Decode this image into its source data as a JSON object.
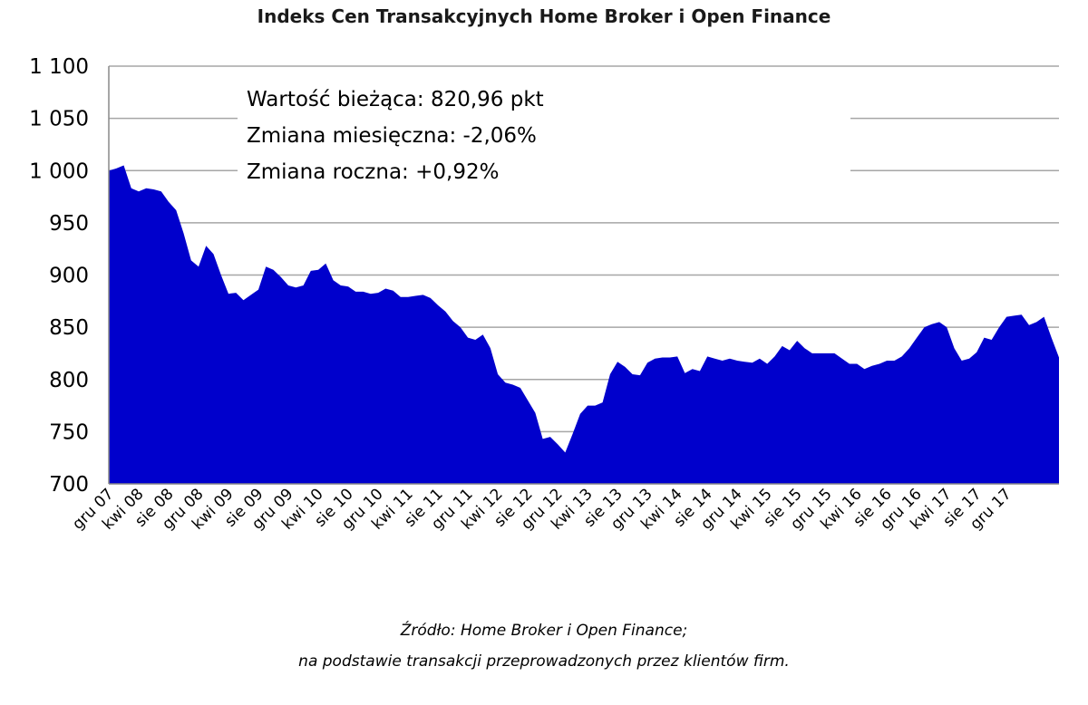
{
  "chart_data": {
    "type": "area",
    "title": "Indeks Cen Transakcyjnych Home Broker i Open Finance",
    "xlabel": "",
    "ylabel": "",
    "ylim": [
      700,
      1100
    ],
    "yticks": [
      "1 100",
      "1 050",
      "1 000",
      "950",
      "900",
      "850",
      "800",
      "750",
      "700"
    ],
    "ytick_values": [
      1100,
      1050,
      1000,
      950,
      900,
      850,
      800,
      750,
      700
    ],
    "xtick_labels": [
      "gru 07",
      "kwi 08",
      "sie 08",
      "gru 08",
      "kwi 09",
      "sie 09",
      "gru 09",
      "kwi 10",
      "sie 10",
      "gru 10",
      "kwi 11",
      "sie 11",
      "gru 11",
      "kwi 12",
      "sie 12",
      "gru 12",
      "kwi 13",
      "sie 13",
      "gru 13",
      "kwi 14",
      "sie 14",
      "gru 14",
      "kwi 15",
      "sie 15",
      "gru 15",
      "kwi 16",
      "sie 16",
      "gru 16",
      "kwi 17",
      "sie 17",
      "gru 17"
    ],
    "grid": true,
    "legend": "none",
    "color": "#0000cc",
    "series": [
      {
        "values": [
          1000,
          1002,
          1005,
          983,
          980,
          983,
          982,
          980,
          970,
          962,
          940,
          914,
          908,
          928,
          920,
          900,
          882,
          883,
          876,
          881,
          886,
          908,
          905,
          898,
          890,
          888,
          890,
          904,
          905,
          911,
          895,
          890,
          889,
          884,
          884,
          882,
          883,
          887,
          885,
          879,
          879,
          880,
          881,
          878,
          871,
          865,
          856,
          850,
          840,
          838,
          843,
          830,
          805,
          797,
          795,
          792,
          780,
          768,
          743,
          745,
          738,
          730,
          748,
          767,
          775,
          775,
          778,
          805,
          817,
          812,
          805,
          804,
          816,
          820,
          821,
          821,
          822,
          806,
          810,
          808,
          822,
          820,
          818,
          820,
          818,
          817,
          816,
          820,
          815,
          822,
          832,
          828,
          837,
          830,
          825,
          825,
          825,
          825,
          820,
          815,
          815,
          810,
          813,
          815,
          818,
          818,
          822,
          830,
          840,
          850,
          853,
          855,
          850,
          830,
          818,
          820,
          826,
          840,
          838,
          850,
          860,
          861,
          862,
          852,
          855,
          860,
          840,
          821
        ]
      }
    ],
    "annotations": [
      "Wartość bieżąca: 820,96 pkt",
      "Zmiana miesięczna: -2,06%",
      "Zmiana roczna: +0,92%"
    ]
  },
  "source": {
    "line1": "Źródło: Home Broker i Open Finance;",
    "line2": "na podstawie transakcji przeprowadzonych przez klientów firm."
  }
}
